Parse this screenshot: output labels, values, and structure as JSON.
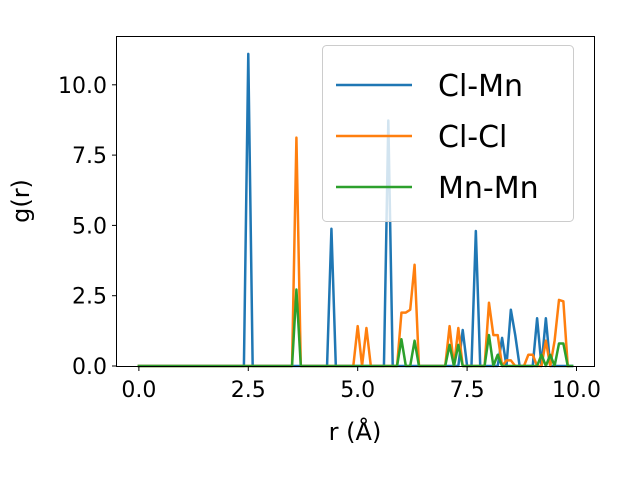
{
  "chart_data": {
    "type": "line",
    "title": "",
    "xlabel": "r (Å)",
    "ylabel": "g(r)",
    "xlim": [
      -0.5,
      10.4
    ],
    "ylim": [
      0,
      11.7
    ],
    "xticks": [
      0.0,
      2.5,
      5.0,
      7.5,
      10.0
    ],
    "xtick_labels": [
      "0.0",
      "2.5",
      "5.0",
      "7.5",
      "10.0"
    ],
    "yticks": [
      0.0,
      2.5,
      5.0,
      7.5,
      10.0
    ],
    "ytick_labels": [
      "0.0",
      "2.5",
      "5.0",
      "7.5",
      "10.0"
    ],
    "grid": false,
    "legend_position": "top-right",
    "series": [
      {
        "name": "Cl-Mn",
        "color": "#1f77b4",
        "x": [
          0.0,
          2.4,
          2.5,
          2.6,
          4.3,
          4.4,
          4.5,
          5.6,
          5.7,
          5.8,
          7.3,
          7.4,
          7.5,
          7.6,
          7.7,
          7.8,
          8.2,
          8.3,
          8.4,
          8.5,
          8.6,
          8.7,
          9.0,
          9.1,
          9.2,
          9.3,
          9.4,
          9.9
        ],
        "y": [
          0.0,
          0.0,
          11.1,
          0.0,
          0.0,
          4.88,
          0.0,
          0.0,
          8.73,
          0.0,
          0.0,
          1.28,
          0.0,
          0.0,
          4.8,
          0.0,
          0.0,
          1.0,
          0.0,
          2.0,
          1.1,
          0.0,
          0.0,
          1.7,
          0.0,
          1.7,
          0.0,
          0.0
        ]
      },
      {
        "name": "Cl-Cl",
        "color": "#ff7f0e",
        "x": [
          0.0,
          3.5,
          3.6,
          3.7,
          4.9,
          5.0,
          5.1,
          5.2,
          5.3,
          5.9,
          6.0,
          6.1,
          6.2,
          6.3,
          6.4,
          7.0,
          7.1,
          7.2,
          7.3,
          7.4,
          7.9,
          8.0,
          8.1,
          8.2,
          8.3,
          8.4,
          8.5,
          8.6,
          8.8,
          8.9,
          9.0,
          9.1,
          9.2,
          9.3,
          9.4,
          9.5,
          9.6,
          9.7,
          9.8
        ],
        "y": [
          0.0,
          0.0,
          8.12,
          0.0,
          0.0,
          1.42,
          0.0,
          1.35,
          0.0,
          0.0,
          1.9,
          1.9,
          2.0,
          3.6,
          0.0,
          0.0,
          1.42,
          0.0,
          1.35,
          0.0,
          0.0,
          2.25,
          1.1,
          1.1,
          0.0,
          0.2,
          0.2,
          0.0,
          0.0,
          0.4,
          0.4,
          0.0,
          0.0,
          0.9,
          0.0,
          0.9,
          2.35,
          2.3,
          0.0
        ]
      },
      {
        "name": "Mn-Mn",
        "color": "#2ca02c",
        "x": [
          0.0,
          3.5,
          3.6,
          3.7,
          5.9,
          6.0,
          6.1,
          6.2,
          6.3,
          6.4,
          7.0,
          7.1,
          7.2,
          7.3,
          7.4,
          7.9,
          8.0,
          8.1,
          8.2,
          8.3,
          9.1,
          9.2,
          9.3,
          9.4,
          9.5,
          9.6,
          9.7,
          9.8,
          9.9
        ],
        "y": [
          0.0,
          0.0,
          2.72,
          0.0,
          0.0,
          0.95,
          0.0,
          0.0,
          0.9,
          0.0,
          0.0,
          0.75,
          0.0,
          0.75,
          0.0,
          0.0,
          1.1,
          0.0,
          0.4,
          0.0,
          0.0,
          0.4,
          0.0,
          0.4,
          0.0,
          0.8,
          0.8,
          0.0,
          0.0
        ]
      }
    ]
  }
}
